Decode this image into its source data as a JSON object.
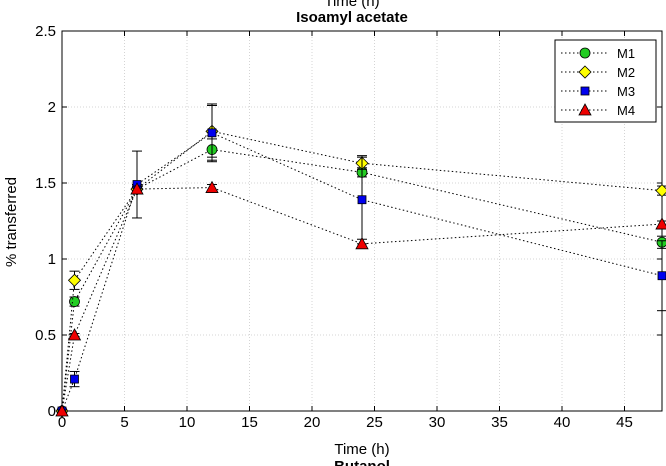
{
  "chart_data": {
    "type": "line",
    "title": "Isoamyl acetate",
    "top_clipped_label": "Time (h)",
    "bottom_clipped_label": "Butanol",
    "xlabel": "Time (h)",
    "ylabel": "% transferred",
    "xlim": [
      0,
      48
    ],
    "ylim": [
      0,
      2.5
    ],
    "xticks": [
      0,
      5,
      10,
      15,
      20,
      25,
      30,
      35,
      40,
      45
    ],
    "yticks": [
      0,
      0.5,
      1,
      1.5,
      2,
      2.5
    ],
    "ytick_labels": [
      "0",
      "0.5",
      "1",
      "1.5",
      "2",
      "2.5"
    ],
    "grid": true,
    "legend_position": "top-right",
    "x": [
      0,
      1,
      6,
      12,
      24,
      48
    ],
    "series": [
      {
        "name": "M1",
        "marker": "circle",
        "color": "#22cc22",
        "values": [
          0,
          0.72,
          1.46,
          1.72,
          1.57,
          1.11
        ],
        "errors": [
          0,
          0.03,
          0.03,
          0.07,
          0.03,
          0.04
        ]
      },
      {
        "name": "M2",
        "marker": "diamond",
        "color": "#ffff00",
        "values": [
          0,
          0.86,
          1.46,
          1.84,
          1.63,
          1.45
        ],
        "errors": [
          0,
          0.06,
          0.03,
          0.17,
          0.04,
          0.03
        ]
      },
      {
        "name": "M3",
        "marker": "square",
        "color": "#0000ee",
        "values": [
          0,
          0.21,
          1.49,
          1.83,
          1.39,
          0.89
        ],
        "errors": [
          0,
          0.05,
          0.22,
          0.19,
          0.29,
          0.23
        ]
      },
      {
        "name": "M4",
        "marker": "triangle",
        "color": "#ee0000",
        "values": [
          0,
          0.5,
          1.46,
          1.47,
          1.1,
          1.23
        ],
        "errors": [
          0,
          0.01,
          0.02,
          0.02,
          0.03,
          0.02
        ]
      }
    ]
  }
}
